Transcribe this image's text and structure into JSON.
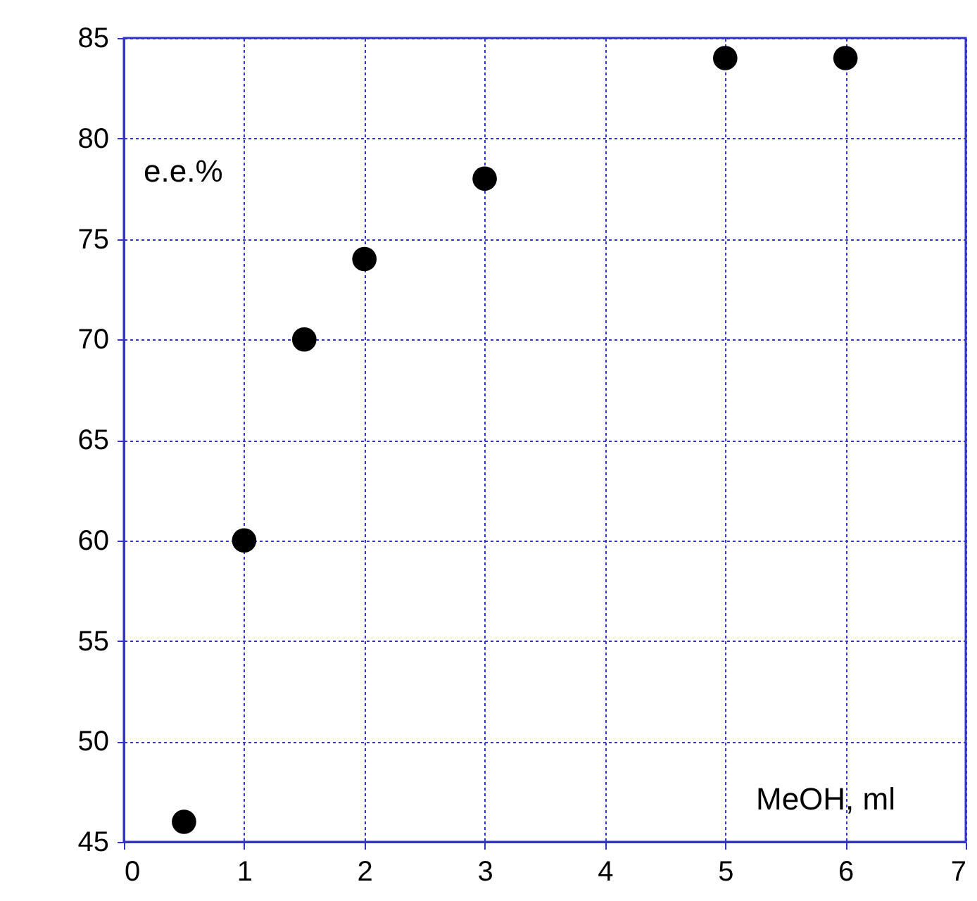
{
  "chart_data": {
    "type": "scatter",
    "xlabel": "MeOH, ml",
    "ylabel": "e.e.%",
    "x": [
      0.5,
      1,
      1.5,
      2,
      3,
      5,
      6
    ],
    "series": [
      {
        "color": "#000000",
        "values": [
          46,
          60,
          70,
          74,
          78,
          84,
          84
        ]
      }
    ],
    "xlim": [
      0,
      7
    ],
    "xticks": [
      0,
      1,
      2,
      3,
      4,
      5,
      6,
      7
    ],
    "ylim": [
      45,
      85
    ],
    "yticks": [
      45,
      50,
      55,
      60,
      65,
      70,
      75,
      80,
      85
    ],
    "grid": true,
    "marker": "circle"
  }
}
